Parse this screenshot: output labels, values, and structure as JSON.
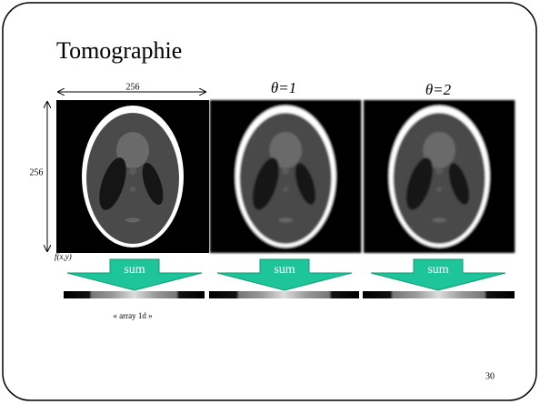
{
  "title": "Tomographie",
  "dimensions": {
    "width_label": "256",
    "height_label": "256"
  },
  "function_label": "f(x,y)",
  "angles": [
    "θ=1",
    "θ=2"
  ],
  "panels": [
    {
      "sum_label": "sum"
    },
    {
      "sum_label": "sum"
    },
    {
      "sum_label": "sum"
    }
  ],
  "array_label": "« array 1d »",
  "page_number": "30"
}
